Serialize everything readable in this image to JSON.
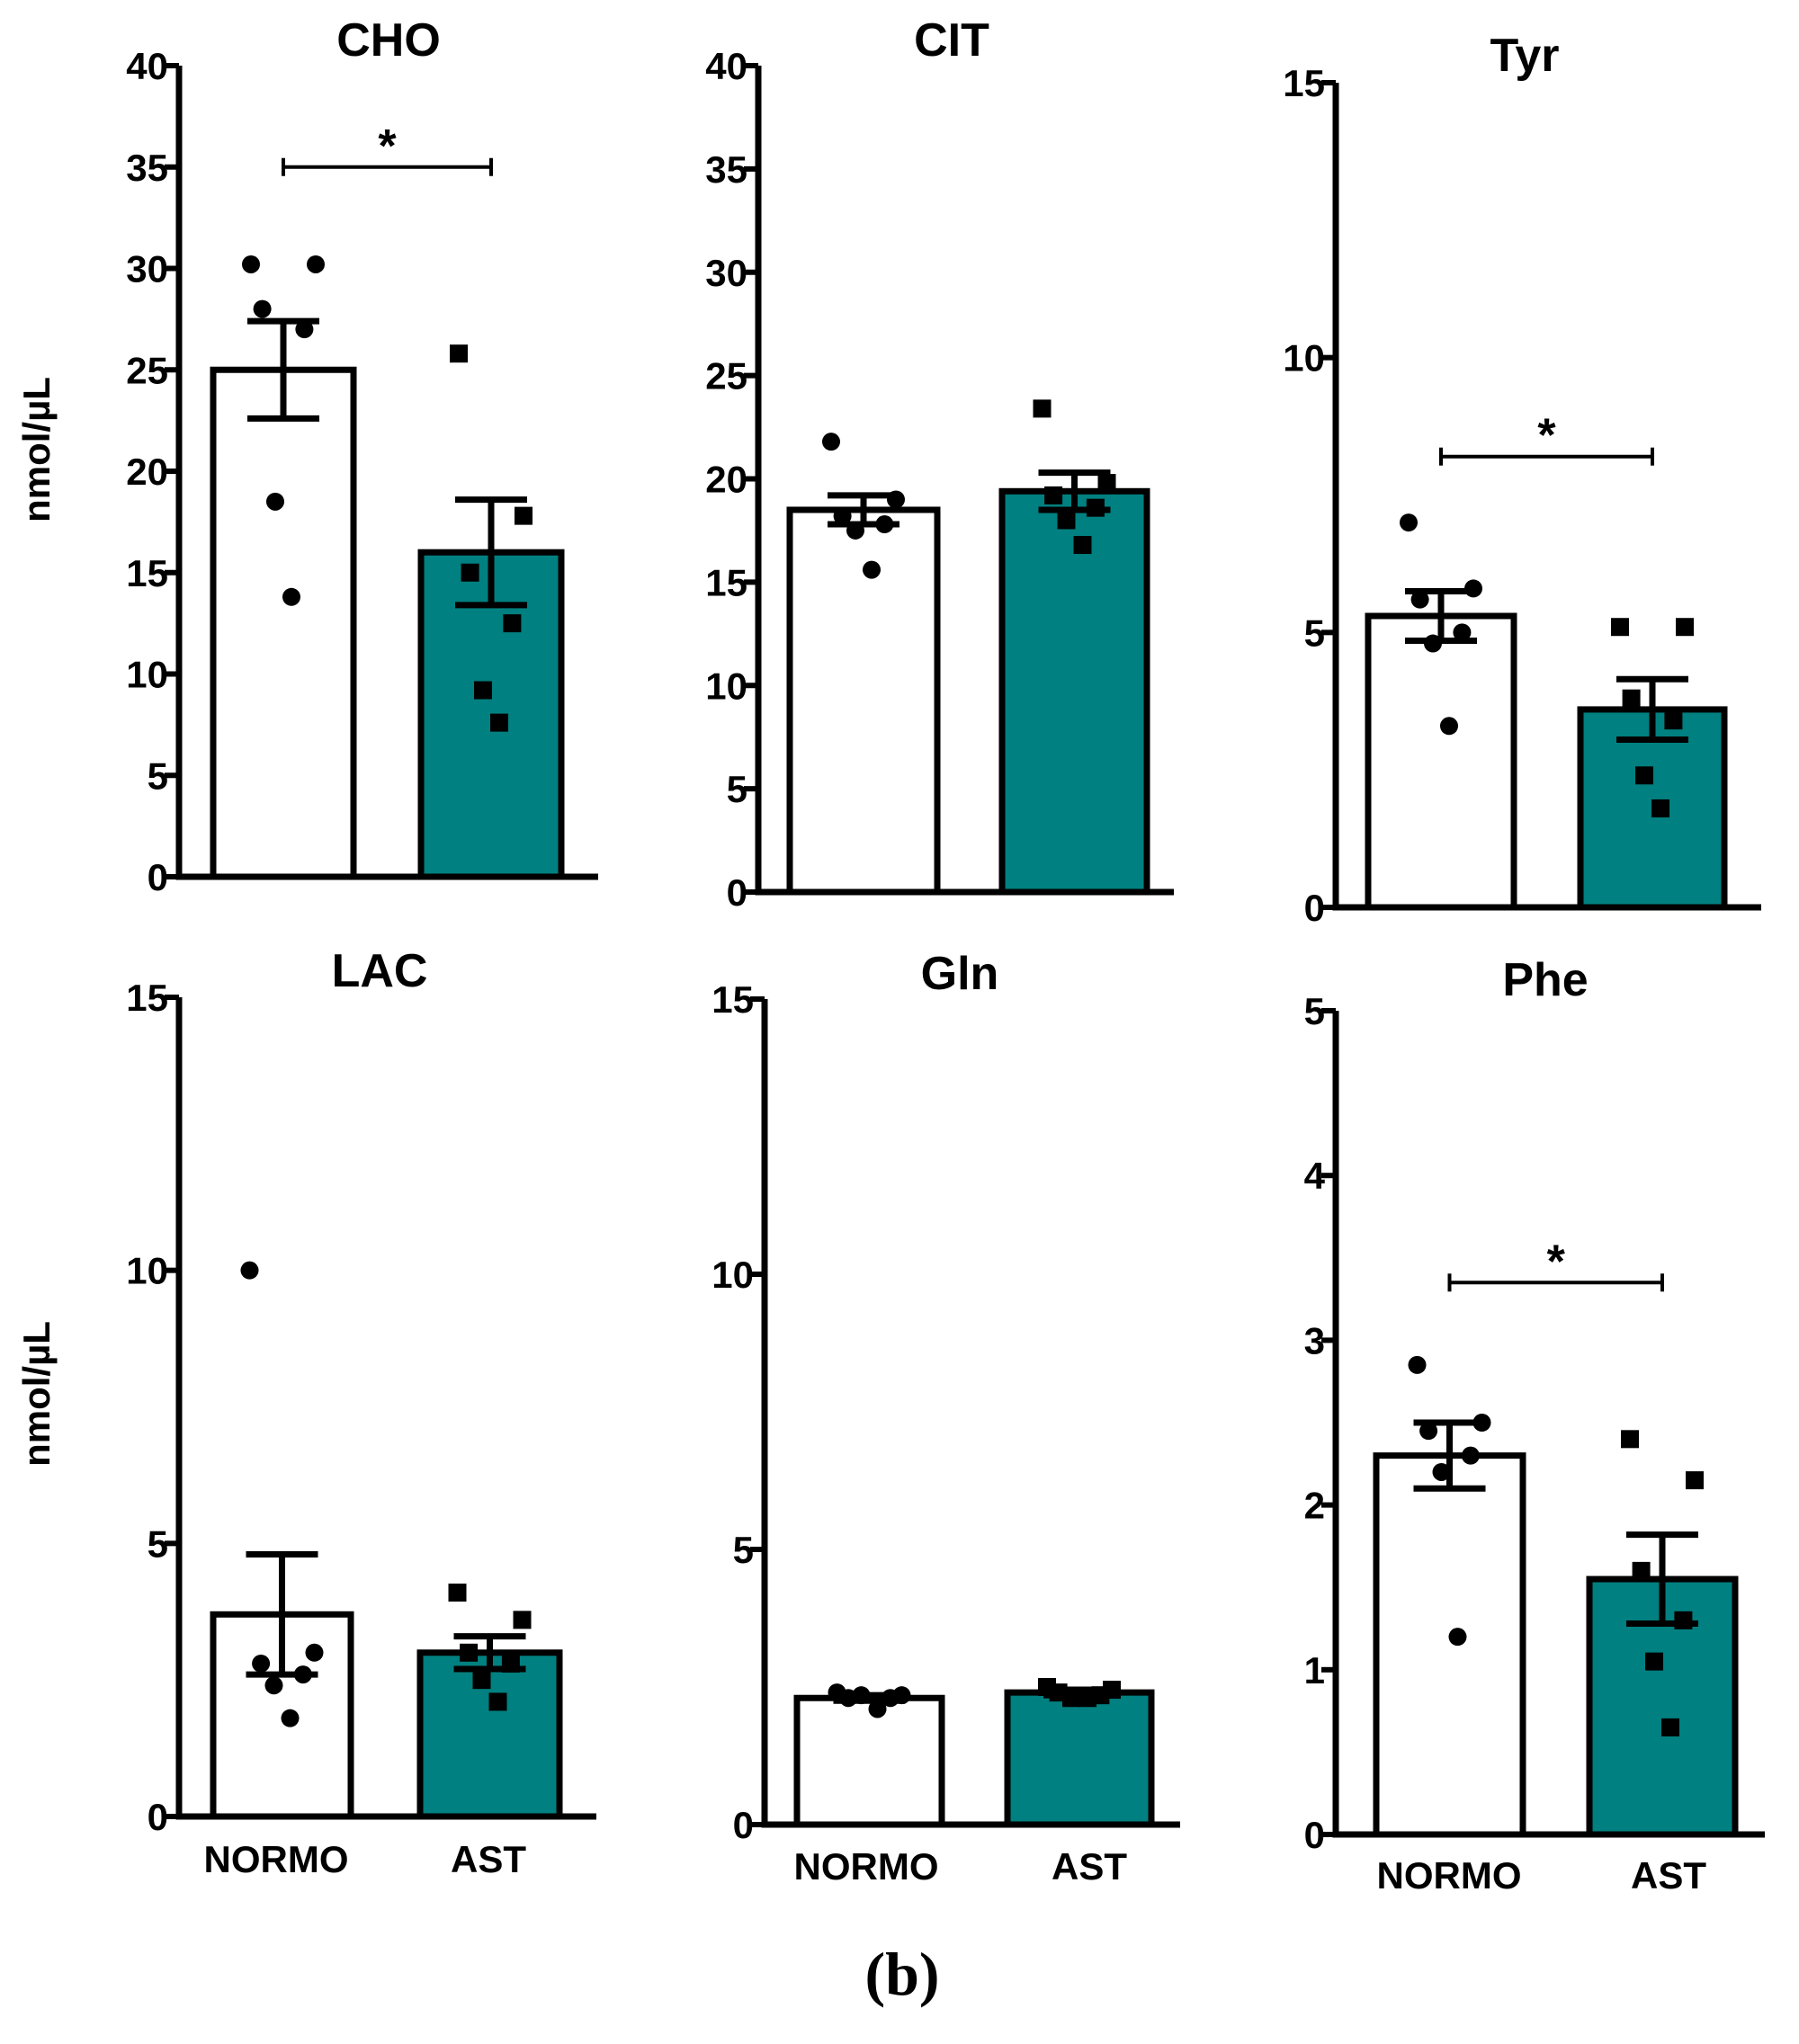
{
  "figure_label": "(b)",
  "colors": {
    "normo": "#ffffff",
    "ast": "#008080",
    "stroke": "#000000"
  },
  "chart_data": [
    {
      "type": "bar",
      "title": "CHO",
      "ylabel": "nmol/µL",
      "categories": [
        "NORMO",
        "AST"
      ],
      "show_categories": false,
      "ylim": [
        0,
        40
      ],
      "yticks": [
        0,
        5,
        10,
        15,
        20,
        25,
        30,
        35,
        40
      ],
      "values": [
        25.0,
        16.0
      ],
      "sem": [
        2.4,
        2.6
      ],
      "points": [
        [
          30.2,
          30.2,
          28.0,
          27.0,
          18.5,
          13.8
        ],
        [
          25.8,
          17.8,
          15.0,
          12.5,
          9.2,
          7.6
        ]
      ],
      "significance": {
        "label": "*",
        "level": 35
      }
    },
    {
      "type": "bar",
      "title": "CIT",
      "ylabel": "",
      "categories": [
        "NORMO",
        "AST"
      ],
      "show_categories": false,
      "ylim": [
        0,
        40
      ],
      "yticks": [
        0,
        5,
        10,
        15,
        20,
        25,
        30,
        35,
        40
      ],
      "values": [
        18.5,
        19.4
      ],
      "sem": [
        0.7,
        0.9
      ],
      "points": [
        [
          21.8,
          19.0,
          18.2,
          17.8,
          17.5,
          15.6
        ],
        [
          23.4,
          19.8,
          19.2,
          18.6,
          18.0,
          16.8
        ]
      ],
      "significance": null
    },
    {
      "type": "bar",
      "title": "Tyr",
      "ylabel": "",
      "categories": [
        "NORMO",
        "AST"
      ],
      "show_categories": false,
      "ylim": [
        0,
        15
      ],
      "yticks": [
        0,
        5,
        10,
        15
      ],
      "values": [
        5.3,
        3.6
      ],
      "sem": [
        0.45,
        0.55
      ],
      "points": [
        [
          7.0,
          5.8,
          5.6,
          5.0,
          4.8,
          3.3
        ],
        [
          5.1,
          5.1,
          3.8,
          3.4,
          2.4,
          1.8
        ]
      ],
      "significance": {
        "label": "*",
        "level": 8.2
      }
    },
    {
      "type": "bar",
      "title": "LAC",
      "ylabel": "nmol/µL",
      "categories": [
        "NORMO",
        "AST"
      ],
      "show_categories": true,
      "ylim": [
        0,
        15
      ],
      "yticks": [
        0,
        5,
        10,
        15
      ],
      "values": [
        3.7,
        3.0
      ],
      "sem": [
        1.1,
        0.3
      ],
      "points": [
        [
          10.0,
          3.0,
          2.8,
          2.6,
          2.4,
          1.8
        ],
        [
          4.1,
          3.6,
          3.0,
          2.8,
          2.5,
          2.1
        ]
      ],
      "significance": null
    },
    {
      "type": "bar",
      "title": "Gln",
      "ylabel": "",
      "categories": [
        "NORMO",
        "AST"
      ],
      "show_categories": true,
      "ylim": [
        0,
        15
      ],
      "yticks": [
        0,
        5,
        10,
        15
      ],
      "values": [
        2.3,
        2.4
      ],
      "sem": [
        0.05,
        0.05
      ],
      "points": [
        [
          2.4,
          2.35,
          2.3,
          2.3,
          2.35,
          2.1
        ],
        [
          2.5,
          2.45,
          2.4,
          2.35,
          2.3,
          2.3
        ]
      ],
      "significance": null
    },
    {
      "type": "bar",
      "title": "Phe",
      "ylabel": "",
      "categories": [
        "NORMO",
        "AST"
      ],
      "show_categories": true,
      "ylim": [
        0,
        5
      ],
      "yticks": [
        0,
        1,
        2,
        3,
        4,
        5
      ],
      "values": [
        2.3,
        1.55
      ],
      "sem": [
        0.2,
        0.27
      ],
      "points": [
        [
          2.85,
          2.5,
          2.45,
          2.3,
          2.2,
          1.2
        ],
        [
          2.4,
          2.15,
          1.6,
          1.3,
          1.05,
          0.65
        ]
      ],
      "significance": {
        "label": "*",
        "level": 3.35
      }
    }
  ]
}
